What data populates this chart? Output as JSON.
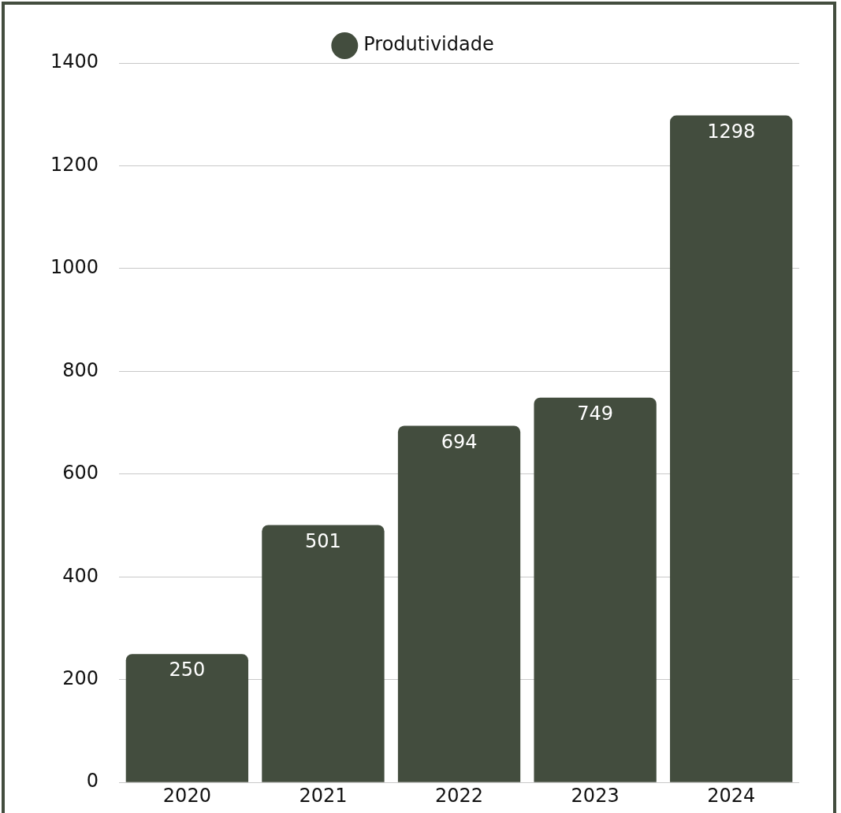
{
  "chart_data": {
    "type": "bar",
    "categories": [
      "2020",
      "2021",
      "2022",
      "2023",
      "2024"
    ],
    "series": [
      {
        "name": "Produtividade",
        "color": "#434d3e",
        "values": [
          250,
          501,
          694,
          749,
          1298
        ]
      }
    ],
    "ylim": [
      0,
      1400
    ],
    "yticks": [
      0,
      200,
      400,
      600,
      800,
      1000,
      1200,
      1400
    ],
    "grid": "y",
    "legend": "top",
    "data_labels": true
  }
}
